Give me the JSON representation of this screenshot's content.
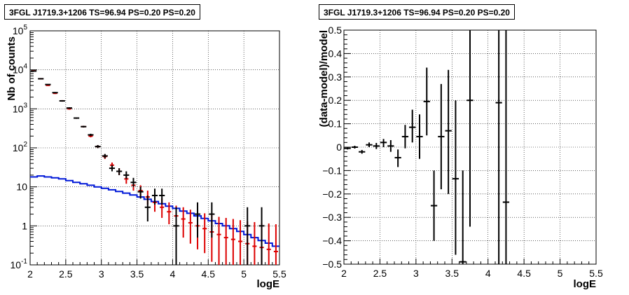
{
  "chart_data": [
    {
      "type": "step-histogram-with-errorbars",
      "title": "3FGL J1719.3+1206 TS=96.94 PS=0.20 PS=0.20",
      "xlabel": "logE",
      "ylabel": "Nb of counts",
      "xlim": [
        2,
        5.5
      ],
      "ylim": [
        0.1,
        100000
      ],
      "yscale": "log",
      "grid": true,
      "x_ticks": [
        "2",
        "2.5",
        "3",
        "3.5",
        "4",
        "4.5",
        "5",
        "5.5"
      ],
      "y_ticks": [
        "10^-1",
        "1",
        "10",
        "10^2",
        "10^3",
        "10^4",
        "10^5"
      ],
      "bin_width": 0.1,
      "series": [
        {
          "color": "#000000",
          "style": "data-errorbars",
          "points": [
            {
              "x": 2.05,
              "y": 9300,
              "lo": 9100,
              "hi": 9500
            },
            {
              "x": 2.15,
              "y": 5900,
              "lo": 5750,
              "hi": 6050
            },
            {
              "x": 2.25,
              "y": 4200,
              "lo": 4080,
              "hi": 4320
            },
            {
              "x": 2.35,
              "y": 2600,
              "lo": 2500,
              "hi": 2700
            },
            {
              "x": 2.45,
              "y": 1600,
              "lo": 1530,
              "hi": 1670
            },
            {
              "x": 2.55,
              "y": 1050,
              "lo": 1000,
              "hi": 1100
            },
            {
              "x": 2.65,
              "y": 580,
              "lo": 555,
              "hi": 605
            },
            {
              "x": 2.75,
              "y": 350,
              "lo": 332,
              "hi": 368
            },
            {
              "x": 2.85,
              "y": 215,
              "lo": 200,
              "hi": 230
            },
            {
              "x": 2.95,
              "y": 108,
              "lo": 98,
              "hi": 118
            },
            {
              "x": 3.05,
              "y": 62,
              "lo": 54,
              "hi": 70
            },
            {
              "x": 3.15,
              "y": 30,
              "lo": 25,
              "hi": 36
            },
            {
              "x": 3.25,
              "y": 25,
              "lo": 20,
              "hi": 30
            },
            {
              "x": 3.35,
              "y": 20,
              "lo": 16,
              "hi": 25
            },
            {
              "x": 3.45,
              "y": 13,
              "lo": 10,
              "hi": 17
            },
            {
              "x": 3.55,
              "y": 7.5,
              "lo": 5,
              "hi": 10
            },
            {
              "x": 3.65,
              "y": 3,
              "lo": 1.3,
              "hi": 6
            },
            {
              "x": 3.75,
              "y": 6,
              "lo": 3.5,
              "hi": 9
            },
            {
              "x": 3.85,
              "y": 6,
              "lo": 3.5,
              "hi": 9
            },
            {
              "x": 4.05,
              "y": 1,
              "lo": 0.1,
              "hi": 3
            },
            {
              "x": 4.35,
              "y": 2,
              "lo": 0.5,
              "hi": 4
            },
            {
              "x": 4.55,
              "y": 2,
              "lo": 0.5,
              "hi": 4
            },
            {
              "x": 5.05,
              "y": 1,
              "lo": 0.1,
              "hi": 3
            },
            {
              "x": 5.25,
              "y": 1,
              "lo": 0.1,
              "hi": 3
            }
          ]
        },
        {
          "color": "#dd0000",
          "style": "model-errorbars",
          "points": [
            {
              "x": 2.05,
              "y": 9400,
              "lo": 9200,
              "hi": 9600
            },
            {
              "x": 2.15,
              "y": 5900,
              "lo": 5750,
              "hi": 6050
            },
            {
              "x": 2.25,
              "y": 4000,
              "lo": 3880,
              "hi": 4120
            },
            {
              "x": 2.35,
              "y": 2500,
              "lo": 2400,
              "hi": 2600
            },
            {
              "x": 2.45,
              "y": 1600,
              "lo": 1530,
              "hi": 1670
            },
            {
              "x": 2.55,
              "y": 1000,
              "lo": 950,
              "hi": 1050
            },
            {
              "x": 2.65,
              "y": 580,
              "lo": 555,
              "hi": 605
            },
            {
              "x": 2.75,
              "y": 350,
              "lo": 332,
              "hi": 368
            },
            {
              "x": 2.85,
              "y": 200,
              "lo": 186,
              "hi": 214
            },
            {
              "x": 2.95,
              "y": 108,
              "lo": 98,
              "hi": 118
            },
            {
              "x": 3.05,
              "y": 60,
              "lo": 52,
              "hi": 68
            },
            {
              "x": 3.15,
              "y": 36,
              "lo": 30,
              "hi": 42
            },
            {
              "x": 3.25,
              "y": 25,
              "lo": 20,
              "hi": 30
            },
            {
              "x": 3.35,
              "y": 16,
              "lo": 12,
              "hi": 20
            },
            {
              "x": 3.45,
              "y": 11,
              "lo": 8,
              "hi": 14
            },
            {
              "x": 3.55,
              "y": 8,
              "lo": 5.5,
              "hi": 11
            },
            {
              "x": 3.65,
              "y": 5.5,
              "lo": 3.5,
              "hi": 8
            },
            {
              "x": 3.75,
              "y": 4,
              "lo": 2.3,
              "hi": 6
            },
            {
              "x": 3.85,
              "y": 3,
              "lo": 1.6,
              "hi": 5
            },
            {
              "x": 3.95,
              "y": 2.3,
              "lo": 1.1,
              "hi": 4
            },
            {
              "x": 4.05,
              "y": 1.8,
              "lo": 0.7,
              "hi": 3.3
            },
            {
              "x": 4.15,
              "y": 1.5,
              "lo": 0.5,
              "hi": 3
            },
            {
              "x": 4.25,
              "y": 1.2,
              "lo": 0.35,
              "hi": 2.6
            },
            {
              "x": 4.35,
              "y": 1,
              "lo": 0.25,
              "hi": 2.3
            },
            {
              "x": 4.45,
              "y": 0.85,
              "lo": 0.2,
              "hi": 2.1
            },
            {
              "x": 4.55,
              "y": 0.7,
              "lo": 0.12,
              "hi": 1.9
            },
            {
              "x": 4.65,
              "y": 0.6,
              "lo": 0.1,
              "hi": 1.7
            },
            {
              "x": 4.75,
              "y": 0.5,
              "lo": 0.1,
              "hi": 1.6
            },
            {
              "x": 4.85,
              "y": 0.45,
              "lo": 0.1,
              "hi": 1.5
            },
            {
              "x": 4.95,
              "y": 0.4,
              "lo": 0.1,
              "hi": 1.4
            },
            {
              "x": 5.05,
              "y": 0.35,
              "lo": 0.1,
              "hi": 1.3
            },
            {
              "x": 5.15,
              "y": 0.3,
              "lo": 0.1,
              "hi": 1.25
            },
            {
              "x": 5.25,
              "y": 0.28,
              "lo": 0.1,
              "hi": 1.2
            },
            {
              "x": 5.35,
              "y": 0.25,
              "lo": 0.1,
              "hi": 1.15
            },
            {
              "x": 5.45,
              "y": 0.22,
              "lo": 0.1,
              "hi": 1.1
            }
          ]
        },
        {
          "color": "#0018d8",
          "style": "step",
          "values": [
            18,
            19,
            18,
            17,
            16,
            14.5,
            13,
            12,
            11,
            10,
            9.2,
            8.4,
            7.6,
            6.9,
            6.2,
            5.5,
            4.8,
            4.2,
            3.7,
            3.2,
            2.8,
            2.4,
            2.1,
            1.8,
            1.55,
            1.35,
            1.15,
            1.0,
            0.85,
            0.72,
            0.6,
            0.5,
            0.42,
            0.36,
            0.3
          ]
        }
      ]
    },
    {
      "type": "errorbars",
      "title": "3FGL J1719.3+1206 TS=96.94 PS=0.20 PS=0.20",
      "xlabel": "logE",
      "ylabel": "(data-model)/model",
      "xlim": [
        2,
        5.5
      ],
      "ylim": [
        -0.5,
        0.5
      ],
      "grid": true,
      "x_ticks": [
        "2",
        "2.5",
        "3",
        "3.5",
        "4",
        "4.5",
        "5",
        "5.5"
      ],
      "y_ticks": [
        "-0.5",
        "-0.4",
        "-0.3",
        "-0.2",
        "-0.1",
        "0",
        "0.1",
        "0.2",
        "0.3",
        "0.4",
        "0.5"
      ],
      "series": [
        {
          "color": "#000000",
          "points": [
            {
              "x": 2.05,
              "y": -0.005,
              "lo": -0.01,
              "hi": 0.0
            },
            {
              "x": 2.15,
              "y": 0.0,
              "lo": -0.006,
              "hi": 0.006
            },
            {
              "x": 2.25,
              "y": -0.02,
              "lo": -0.028,
              "hi": -0.012
            },
            {
              "x": 2.35,
              "y": 0.01,
              "lo": 0.0,
              "hi": 0.02
            },
            {
              "x": 2.45,
              "y": 0.005,
              "lo": -0.008,
              "hi": 0.018
            },
            {
              "x": 2.55,
              "y": 0.02,
              "lo": 0.0,
              "hi": 0.035
            },
            {
              "x": 2.65,
              "y": 0.005,
              "lo": -0.02,
              "hi": 0.03
            },
            {
              "x": 2.75,
              "y": -0.045,
              "lo": -0.085,
              "hi": -0.01
            },
            {
              "x": 2.85,
              "y": 0.045,
              "lo": -0.005,
              "hi": 0.095
            },
            {
              "x": 2.95,
              "y": 0.085,
              "lo": 0.02,
              "hi": 0.16
            },
            {
              "x": 3.05,
              "y": 0.045,
              "lo": -0.05,
              "hi": 0.14
            },
            {
              "x": 3.15,
              "y": 0.195,
              "lo": 0.05,
              "hi": 0.34
            },
            {
              "x": 3.25,
              "y": -0.25,
              "lo": -0.4,
              "hi": -0.1
            },
            {
              "x": 3.35,
              "y": 0.045,
              "lo": -0.18,
              "hi": 0.27
            },
            {
              "x": 3.45,
              "y": 0.07,
              "lo": -0.2,
              "hi": 0.33
            },
            {
              "x": 3.55,
              "y": -0.135,
              "lo": -0.46,
              "hi": 0.2
            },
            {
              "x": 3.65,
              "y": -0.49,
              "lo": -0.5,
              "hi": -0.1
            },
            {
              "x": 3.75,
              "y": 0.2,
              "lo": -0.34,
              "hi": 0.5
            },
            {
              "x": 4.15,
              "y": 0.19,
              "lo": -0.5,
              "hi": 0.5
            },
            {
              "x": 4.25,
              "y": -0.235,
              "lo": -0.5,
              "hi": 0.5
            }
          ]
        }
      ]
    }
  ]
}
